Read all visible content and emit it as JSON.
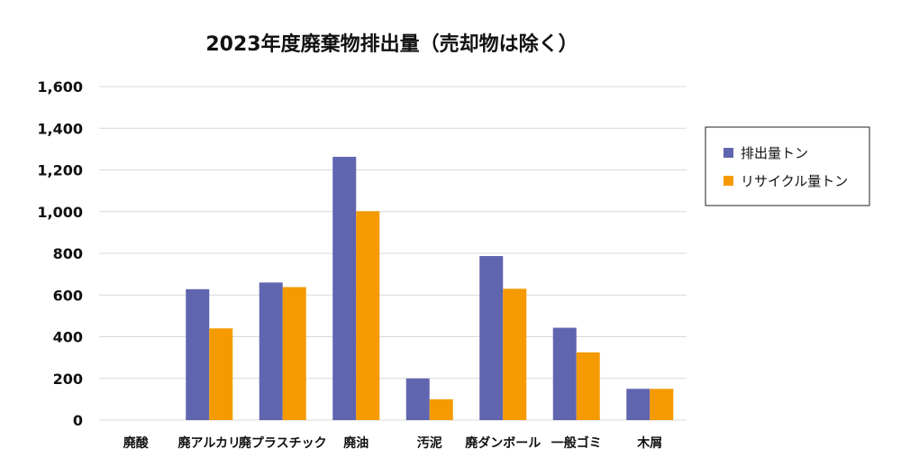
{
  "chart_data": {
    "type": "bar",
    "title": "2023年度廃棄物排出量（売却物は除く）",
    "categories": [
      "廃酸",
      "廃アルカリ",
      "廃プラスチック",
      "廃油",
      "汚泥",
      "廃ダンボール",
      "一般ゴミ",
      "木屑"
    ],
    "series": [
      {
        "name": "排出量トン",
        "color": "#6065b0",
        "values": [
          0,
          628,
          660,
          1263,
          200,
          787,
          443,
          150
        ]
      },
      {
        "name": "リサイクル量トン",
        "color": "#f59a00",
        "values": [
          0,
          440,
          638,
          1002,
          100,
          630,
          325,
          150
        ]
      }
    ],
    "ylim": [
      0,
      1600
    ],
    "yticks": [
      0,
      200,
      400,
      600,
      800,
      1000,
      1200,
      1400,
      1600
    ],
    "ytick_labels": [
      "0",
      "200",
      "400",
      "600",
      "800",
      "1,000",
      "1,200",
      "1,400",
      "1,600"
    ],
    "xlabel": "",
    "ylabel": "",
    "grid": true,
    "legend_position": "right"
  }
}
